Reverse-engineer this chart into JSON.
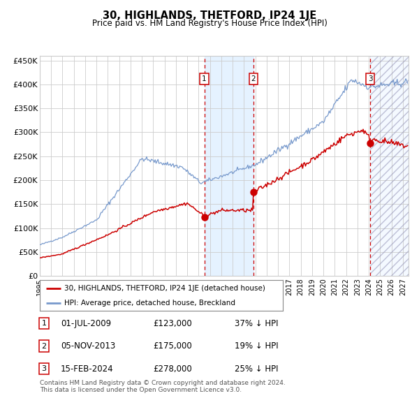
{
  "title": "30, HIGHLANDS, THETFORD, IP24 1JE",
  "subtitle": "Price paid vs. HM Land Registry's House Price Index (HPI)",
  "hpi_color": "#7799cc",
  "price_color": "#cc0000",
  "bg_color": "#ffffff",
  "grid_color": "#cccccc",
  "ylim": [
    0,
    460000
  ],
  "yticks": [
    0,
    50000,
    100000,
    150000,
    200000,
    250000,
    300000,
    350000,
    400000,
    450000
  ],
  "ytick_labels": [
    "£0",
    "£50K",
    "£100K",
    "£150K",
    "£200K",
    "£250K",
    "£300K",
    "£350K",
    "£400K",
    "£450K"
  ],
  "xlim_start": 1995.0,
  "xlim_end": 2027.5,
  "sale_dates": [
    2009.5,
    2013.83,
    2024.12
  ],
  "sale_prices": [
    123000,
    175000,
    278000
  ],
  "sale_labels": [
    "1",
    "2",
    "3"
  ],
  "sale_info": [
    {
      "label": "1",
      "date": "01-JUL-2009",
      "price": "£123,000",
      "pct": "37% ↓ HPI"
    },
    {
      "label": "2",
      "date": "05-NOV-2013",
      "price": "£175,000",
      "pct": "19% ↓ HPI"
    },
    {
      "label": "3",
      "date": "15-FEB-2024",
      "price": "£278,000",
      "pct": "25% ↓ HPI"
    }
  ],
  "legend_line1": "30, HIGHLANDS, THETFORD, IP24 1JE (detached house)",
  "legend_line2": "HPI: Average price, detached house, Breckland",
  "footnote": "Contains HM Land Registry data © Crown copyright and database right 2024.\nThis data is licensed under the Open Government Licence v3.0.",
  "xtick_years": [
    1995,
    1996,
    1997,
    1998,
    1999,
    2000,
    2001,
    2002,
    2003,
    2004,
    2005,
    2006,
    2007,
    2008,
    2009,
    2010,
    2011,
    2012,
    2013,
    2014,
    2015,
    2016,
    2017,
    2018,
    2019,
    2020,
    2021,
    2022,
    2023,
    2024,
    2025,
    2026,
    2027
  ]
}
